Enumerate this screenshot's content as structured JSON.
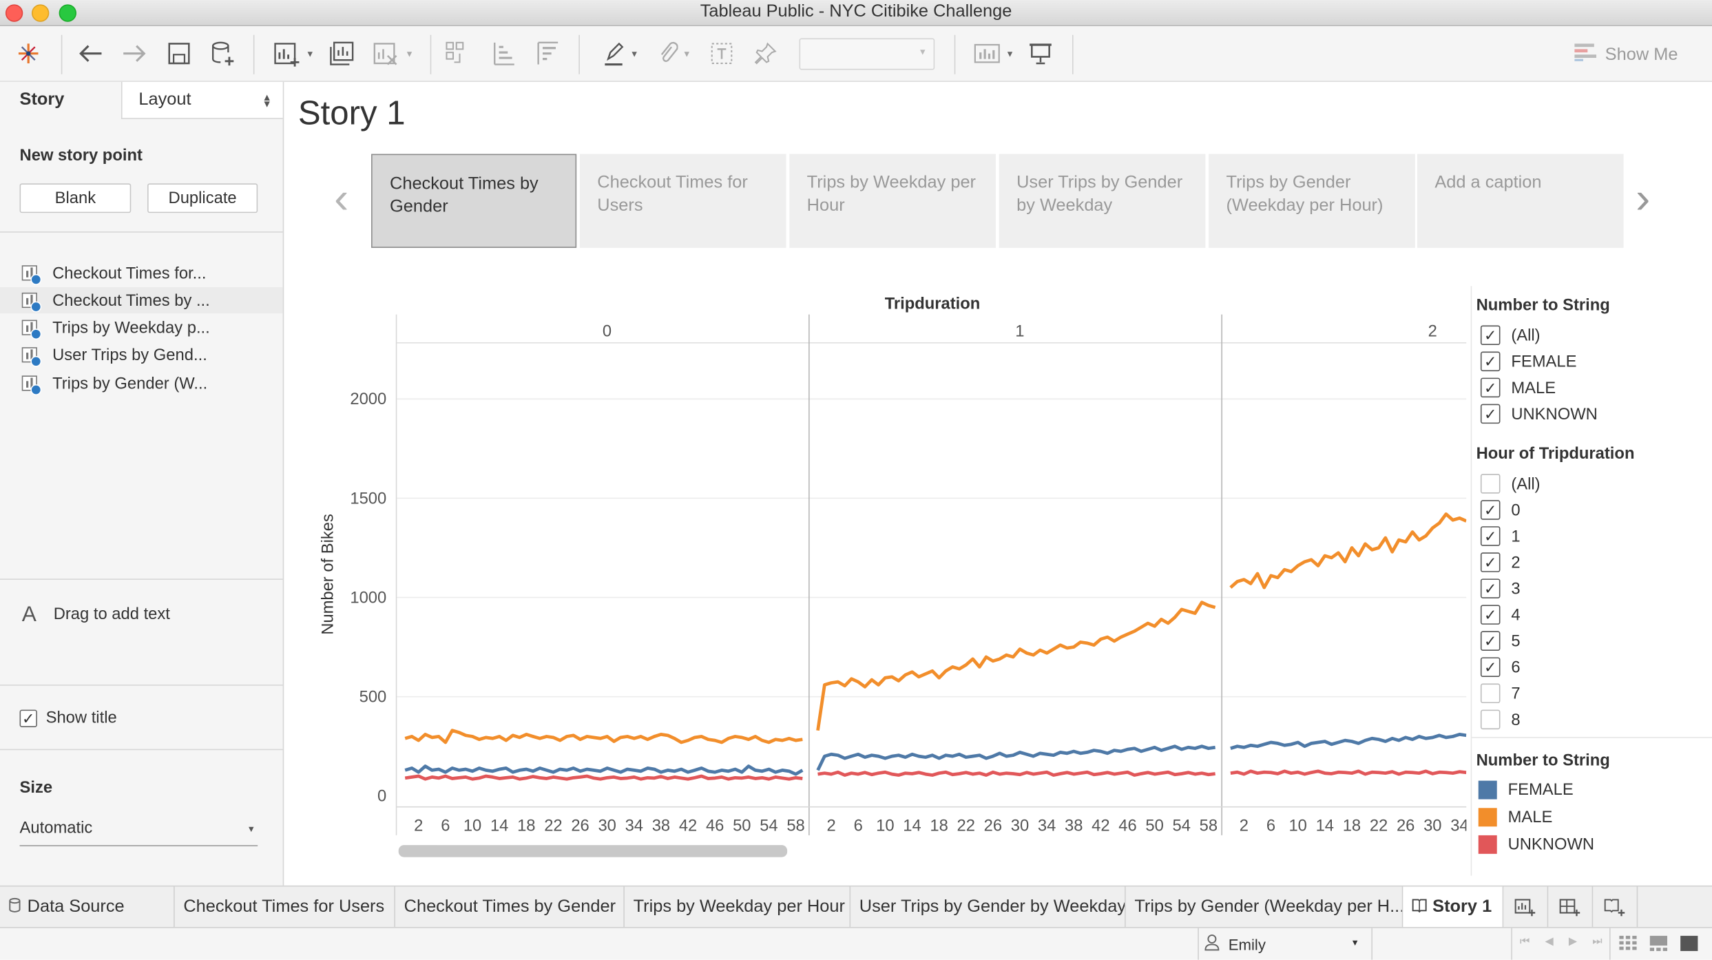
{
  "window": {
    "title": "Tableau Public - NYC Citibike Challenge"
  },
  "toolbar": {
    "show_me_label": "Show Me"
  },
  "left_panel": {
    "tabs": {
      "story": "Story",
      "layout": "Layout"
    },
    "new_story_point_heading": "New story point",
    "blank_button": "Blank",
    "duplicate_button": "Duplicate",
    "story_points": [
      {
        "label": "Checkout Times for..."
      },
      {
        "label": "Checkout Times by ..."
      },
      {
        "label": "Trips by Weekday p..."
      },
      {
        "label": "User Trips by Gend..."
      },
      {
        "label": "Trips by Gender (W..."
      }
    ],
    "drag_text": "Drag to add text",
    "drag_text_icon": "A",
    "show_title_label": "Show title",
    "show_title_checked": true,
    "size_heading": "Size",
    "size_value": "Automatic"
  },
  "story": {
    "title": "Story 1",
    "navigator": [
      {
        "label": "Checkout Times by Gender",
        "active": true
      },
      {
        "label": "Checkout Times for Users",
        "active": false
      },
      {
        "label": "Trips by Weekday per Hour",
        "active": false
      },
      {
        "label": "User Trips by Gender by Weekday",
        "active": false
      },
      {
        "label": "Trips by Gender (Weekday per Hour)",
        "active": false
      },
      {
        "label": "Add a caption",
        "active": false
      }
    ]
  },
  "legend": {
    "filter1": {
      "title": "Number to String",
      "items": [
        {
          "label": "(All)",
          "checked": true
        },
        {
          "label": "FEMALE",
          "checked": true
        },
        {
          "label": "MALE",
          "checked": true
        },
        {
          "label": "UNKNOWN",
          "checked": true
        }
      ]
    },
    "filter2": {
      "title": "Hour of Tripduration",
      "items": [
        {
          "label": "(All)",
          "checked": false
        },
        {
          "label": "0",
          "checked": true
        },
        {
          "label": "1",
          "checked": true
        },
        {
          "label": "2",
          "checked": true
        },
        {
          "label": "3",
          "checked": true
        },
        {
          "label": "4",
          "checked": true
        },
        {
          "label": "5",
          "checked": true
        },
        {
          "label": "6",
          "checked": true
        },
        {
          "label": "7",
          "checked": false
        },
        {
          "label": "8",
          "checked": false
        }
      ]
    },
    "color_legend": {
      "title": "Number to String",
      "items": [
        {
          "label": "FEMALE",
          "color": "#4e79a7"
        },
        {
          "label": "MALE",
          "color": "#f28e2b"
        },
        {
          "label": "UNKNOWN",
          "color": "#e15759"
        }
      ]
    }
  },
  "chart_data": {
    "type": "line",
    "title": "",
    "column_header": "Tripduration",
    "panels": [
      "0",
      "1",
      "2"
    ],
    "ylabel": "Number of Bikes",
    "ylim": [
      0,
      2200
    ],
    "yticks": [
      0,
      500,
      1000,
      1500,
      2000
    ],
    "xtick_labels": [
      "2",
      "6",
      "10",
      "14",
      "18",
      "22",
      "26",
      "30",
      "34",
      "38",
      "42",
      "46",
      "50",
      "54",
      "58"
    ],
    "x_minutes_per_panel": [
      0,
      59
    ],
    "visible_minutes_last_panel": 35,
    "series": [
      {
        "name": "MALE",
        "color": "#f28e2b",
        "panel0": [
          290,
          300,
          280,
          310,
          295,
          300,
          270,
          330,
          320,
          305,
          300,
          285,
          295,
          290,
          300,
          280,
          305,
          295,
          310,
          300,
          290,
          300,
          295,
          280,
          300,
          305,
          285,
          300,
          295,
          290,
          300,
          275,
          295,
          300,
          290,
          300,
          285,
          300,
          310,
          305,
          290,
          270,
          280,
          295,
          300,
          285,
          280,
          270,
          290,
          300,
          295,
          285,
          300,
          280,
          270,
          285,
          280,
          290,
          280,
          285
        ],
        "panel1": [
          330,
          560,
          570,
          575,
          555,
          590,
          575,
          550,
          585,
          560,
          595,
          600,
          580,
          610,
          625,
          600,
          615,
          630,
          595,
          630,
          650,
          640,
          660,
          690,
          650,
          700,
          680,
          690,
          710,
          700,
          740,
          720,
          710,
          735,
          720,
          740,
          760,
          745,
          750,
          775,
          770,
          760,
          790,
          800,
          780,
          800,
          815,
          830,
          850,
          870,
          855,
          890,
          870,
          900,
          940,
          930,
          920,
          975,
          960,
          950
        ],
        "panel2": [
          1050,
          1080,
          1090,
          1070,
          1120,
          1050,
          1110,
          1100,
          1140,
          1130,
          1160,
          1180,
          1190,
          1160,
          1210,
          1200,
          1225,
          1180,
          1250,
          1210,
          1270,
          1240,
          1250,
          1300,
          1230,
          1290,
          1280,
          1330,
          1290,
          1310,
          1350,
          1375,
          1420,
          1390,
          1400,
          1385
        ]
      },
      {
        "name": "FEMALE",
        "color": "#4e79a7",
        "panel0": [
          130,
          140,
          120,
          150,
          130,
          135,
          120,
          140,
          130,
          135,
          125,
          140,
          130,
          125,
          135,
          140,
          120,
          130,
          135,
          125,
          140,
          130,
          120,
          135,
          130,
          140,
          125,
          135,
          130,
          125,
          140,
          130,
          120,
          135,
          130,
          125,
          140,
          135,
          120,
          130,
          125,
          135,
          120,
          130,
          140,
          125,
          120,
          130,
          125,
          135,
          120,
          150,
          130,
          125,
          135,
          120,
          130,
          125,
          110,
          130
        ],
        "panel1": [
          130,
          200,
          210,
          205,
          190,
          200,
          210,
          195,
          205,
          200,
          190,
          200,
          205,
          195,
          210,
          200,
          195,
          205,
          190,
          205,
          200,
          210,
          195,
          200,
          205,
          190,
          200,
          215,
          200,
          205,
          220,
          210,
          200,
          215,
          210,
          205,
          220,
          215,
          225,
          215,
          220,
          230,
          225,
          215,
          230,
          225,
          235,
          240,
          225,
          235,
          245,
          230,
          240,
          250,
          235,
          245,
          240,
          250,
          240,
          245
        ],
        "panel2": [
          240,
          250,
          245,
          255,
          250,
          260,
          270,
          265,
          255,
          260,
          270,
          250,
          265,
          270,
          275,
          260,
          270,
          280,
          275,
          265,
          280,
          290,
          285,
          275,
          290,
          280,
          295,
          285,
          300,
          290,
          295,
          305,
          295,
          300,
          310,
          305
        ]
      },
      {
        "name": "UNKNOWN",
        "color": "#e15759",
        "panel0": [
          90,
          95,
          100,
          85,
          95,
          90,
          100,
          88,
          92,
          95,
          85,
          90,
          100,
          95,
          88,
          92,
          95,
          85,
          90,
          98,
          92,
          88,
          95,
          90,
          85,
          92,
          95,
          100,
          90,
          85,
          92,
          95,
          88,
          90,
          95,
          85,
          92,
          90,
          98,
          88,
          95,
          90,
          85,
          92,
          100,
          88,
          90,
          95,
          85,
          92,
          90,
          95,
          88,
          92,
          85,
          95,
          90,
          85,
          92,
          88
        ],
        "panel1": [
          110,
          115,
          110,
          120,
          105,
          115,
          110,
          118,
          108,
          115,
          120,
          110,
          105,
          115,
          112,
          118,
          110,
          105,
          115,
          120,
          108,
          112,
          118,
          110,
          115,
          105,
          120,
          110,
          115,
          112,
          108,
          118,
          110,
          115,
          120,
          105,
          112,
          118,
          110,
          115,
          120,
          108,
          112,
          118,
          110,
          115,
          120,
          105,
          112,
          118,
          110,
          115,
          120,
          108,
          112,
          118,
          110,
          115,
          108,
          112
        ],
        "panel2": [
          115,
          120,
          110,
          125,
          115,
          120,
          118,
          112,
          125,
          115,
          120,
          110,
          118,
          125,
          115,
          112,
          120,
          118,
          115,
          125,
          110,
          120,
          118,
          115,
          122,
          110,
          120,
          118,
          115,
          125,
          112,
          120,
          118,
          115,
          122,
          118
        ]
      }
    ]
  },
  "bottom_tabs": [
    {
      "label": "Data Source",
      "icon": "database-icon"
    },
    {
      "label": "Checkout Times for Users"
    },
    {
      "label": "Checkout Times by Gender"
    },
    {
      "label": "Trips by Weekday per Hour"
    },
    {
      "label": "User Trips by Gender by Weekday"
    },
    {
      "label": "Trips by Gender (Weekday per H..."
    },
    {
      "label": "Story 1",
      "active": true,
      "icon": "story-icon"
    }
  ],
  "status": {
    "user": "Emily"
  }
}
